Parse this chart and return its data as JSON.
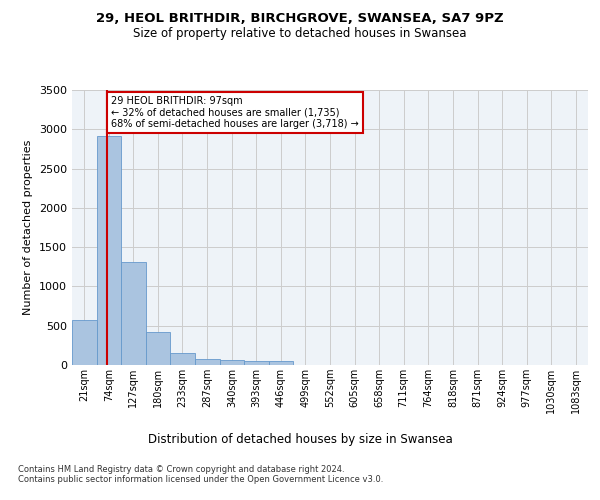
{
  "title_line1": "29, HEOL BRITHDIR, BIRCHGROVE, SWANSEA, SA7 9PZ",
  "title_line2": "Size of property relative to detached houses in Swansea",
  "xlabel": "Distribution of detached houses by size in Swansea",
  "ylabel": "Number of detached properties",
  "footnote": "Contains HM Land Registry data © Crown copyright and database right 2024.\nContains public sector information licensed under the Open Government Licence v3.0.",
  "bin_labels": [
    "21sqm",
    "74sqm",
    "127sqm",
    "180sqm",
    "233sqm",
    "287sqm",
    "340sqm",
    "393sqm",
    "446sqm",
    "499sqm",
    "552sqm",
    "605sqm",
    "658sqm",
    "711sqm",
    "764sqm",
    "818sqm",
    "871sqm",
    "924sqm",
    "977sqm",
    "1030sqm",
    "1083sqm"
  ],
  "bar_values": [
    570,
    2910,
    1310,
    415,
    155,
    80,
    60,
    50,
    45,
    0,
    0,
    0,
    0,
    0,
    0,
    0,
    0,
    0,
    0,
    0,
    0
  ],
  "bar_color": "#aac4e0",
  "bar_edge_color": "#6699cc",
  "property_size": 97,
  "pct_smaller": 32,
  "n_smaller": 1735,
  "pct_larger_semi": 68,
  "n_larger_semi": 3718,
  "vline_color": "#cc0000",
  "annotation_box_color": "#cc0000",
  "ylim": [
    0,
    3500
  ],
  "yticks": [
    0,
    500,
    1000,
    1500,
    2000,
    2500,
    3000,
    3500
  ],
  "bin_edges": [
    21,
    74,
    127,
    180,
    233,
    287,
    340,
    393,
    446,
    499,
    552,
    605,
    658,
    711,
    764,
    818,
    871,
    924,
    977,
    1030,
    1083
  ],
  "grid_color": "#cccccc",
  "bg_color": "#eef3f8"
}
